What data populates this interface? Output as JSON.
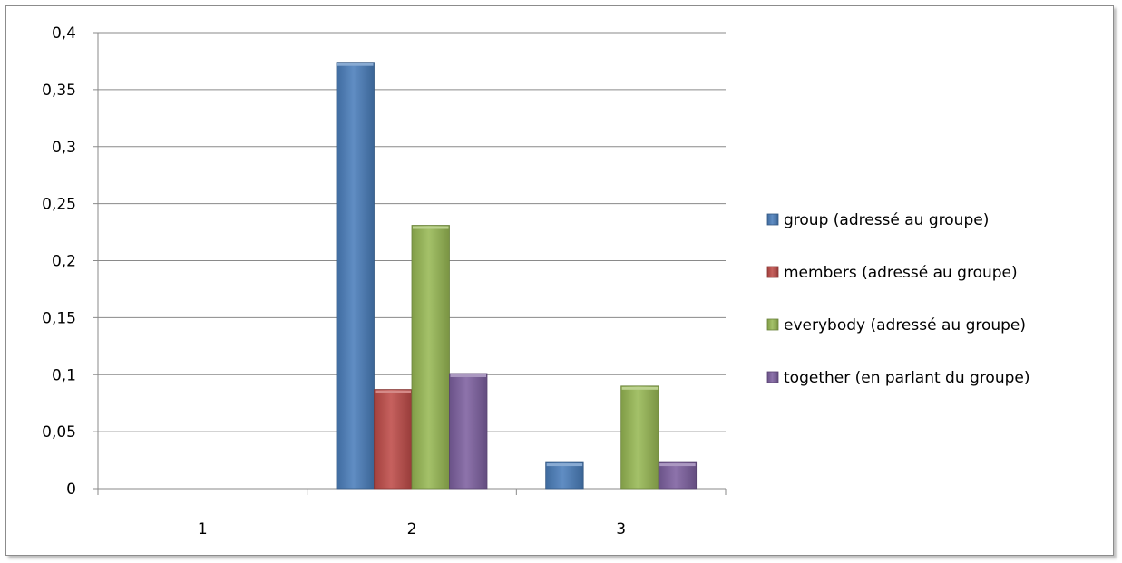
{
  "chart_data": {
    "type": "bar",
    "title": "",
    "xlabel": "",
    "ylabel": "",
    "categories": [
      "1",
      "2",
      "3"
    ],
    "ylim": [
      0,
      0.4
    ],
    "yticks": [
      "0",
      "0,05",
      "0,1",
      "0,15",
      "0,2",
      "0,25",
      "0,3",
      "0,35",
      "0,4"
    ],
    "grid": true,
    "legend_position": "right",
    "series": [
      {
        "name": "group (adressé au groupe)",
        "color": "#4a7ebb",
        "values": [
          0,
          0.374,
          0.023
        ]
      },
      {
        "name": "members (adressé au groupe)",
        "color": "#be4b48",
        "values": [
          0,
          0.087,
          0
        ]
      },
      {
        "name": "everybody (adressé au groupe)",
        "color": "#98b954",
        "values": [
          0,
          0.231,
          0.09
        ]
      },
      {
        "name": "together (en parlant du groupe)",
        "color": "#7d60a0",
        "values": [
          0,
          0.101,
          0.023
        ]
      }
    ]
  }
}
